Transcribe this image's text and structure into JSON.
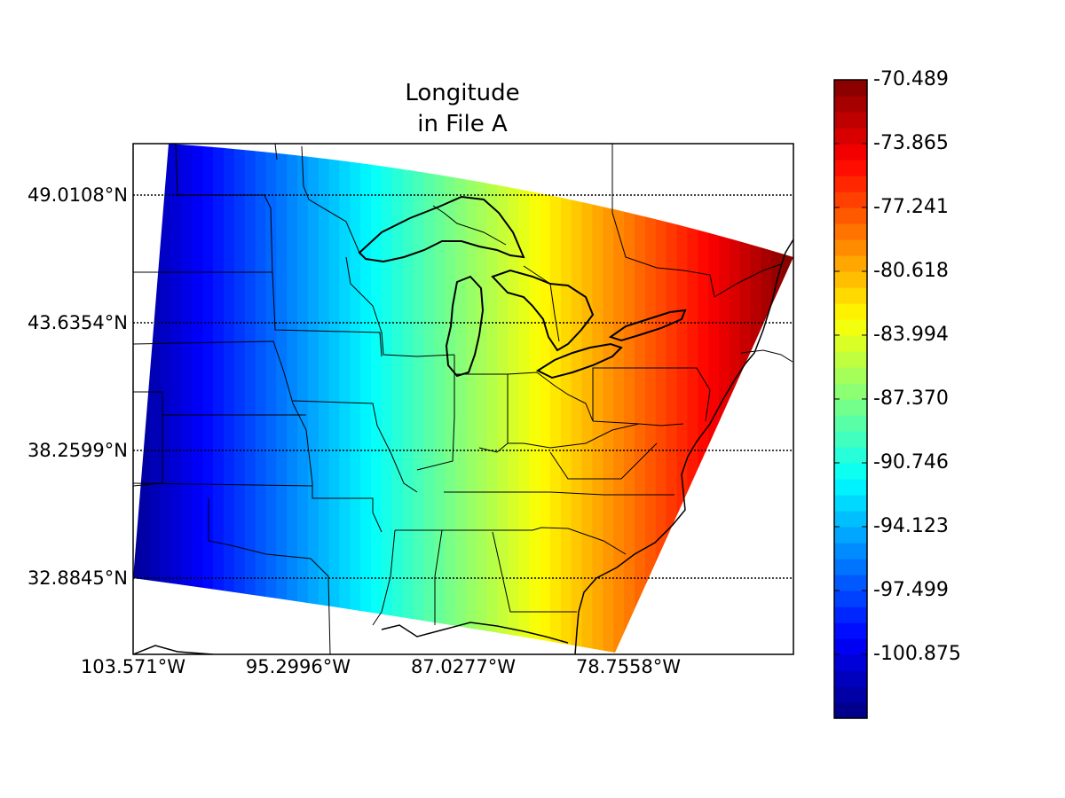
{
  "title_lines": [
    "Longitude",
    "in File A"
  ],
  "lat_ticks": [
    {
      "label": "49.0108°N",
      "value": 49.0108
    },
    {
      "label": "43.6354°N",
      "value": 43.6354
    },
    {
      "label": "38.2599°N",
      "value": 38.2599
    },
    {
      "label": "32.8845°N",
      "value": 32.8845
    }
  ],
  "lon_ticks": [
    {
      "label": "103.571°W",
      "value": -103.571
    },
    {
      "label": "95.2996°W",
      "value": -95.2996
    },
    {
      "label": "87.0277°W",
      "value": -87.0277
    },
    {
      "label": "78.7558°W",
      "value": -78.7558
    }
  ],
  "colorbar": {
    "colormap": "jet",
    "vmin": -104.251,
    "vmax": -70.489,
    "labels": [
      "-70.489",
      "-73.865",
      "-77.241",
      "-80.618",
      "-83.994",
      "-87.370",
      "-90.746",
      "-94.123",
      "-97.499",
      "-100.875"
    ],
    "values": [
      -70.489,
      -73.865,
      -77.241,
      -80.618,
      -83.994,
      -87.37,
      -90.746,
      -94.123,
      -97.499,
      -100.875
    ]
  },
  "chart_data": {
    "type": "heatmap",
    "variable": "Longitude",
    "grid_longitude_range": [
      -104.3,
      -70.5
    ],
    "colors": {
      "frame": "#000000",
      "background": "#ffffff"
    }
  }
}
